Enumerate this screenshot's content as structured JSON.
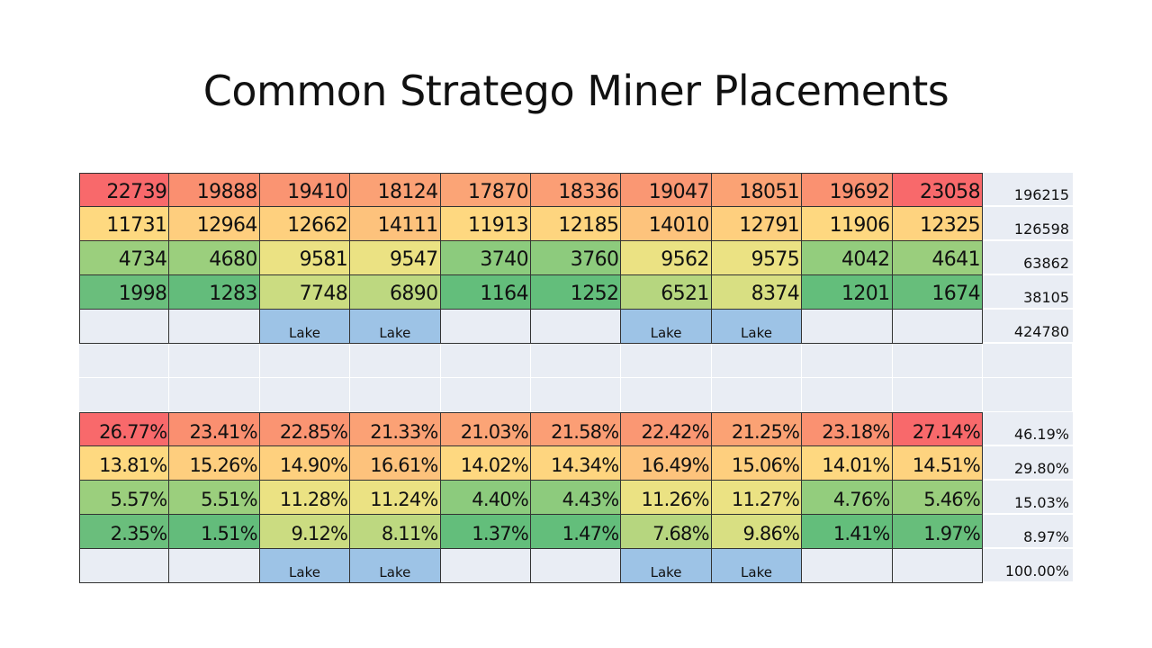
{
  "title": "Common  Stratego Miner Placements",
  "chart_data": {
    "type": "heatmap",
    "title": "Common  Stratego Miner Placements",
    "columns": 10,
    "counts": {
      "rows": [
        [
          22739,
          19888,
          19410,
          18124,
          17870,
          18336,
          19047,
          18051,
          19692,
          23058
        ],
        [
          11731,
          12964,
          12662,
          14111,
          11913,
          12185,
          14010,
          12791,
          11906,
          12325
        ],
        [
          4734,
          4680,
          9581,
          9547,
          3740,
          3760,
          9562,
          9575,
          4042,
          4641
        ],
        [
          1998,
          1283,
          7748,
          6890,
          1164,
          1252,
          6521,
          8374,
          1201,
          1674
        ]
      ],
      "row_totals": [
        196215,
        126598,
        63862,
        38105
      ],
      "grand_total": 424780
    },
    "percentages": {
      "rows": [
        [
          "26.77%",
          "23.41%",
          "22.85%",
          "21.33%",
          "21.03%",
          "21.58%",
          "22.42%",
          "21.25%",
          "23.18%",
          "27.14%"
        ],
        [
          "13.81%",
          "15.26%",
          "14.90%",
          "16.61%",
          "14.02%",
          "14.34%",
          "16.49%",
          "15.06%",
          "14.01%",
          "14.51%"
        ],
        [
          "5.57%",
          "5.51%",
          "11.28%",
          "11.24%",
          "4.40%",
          "4.43%",
          "11.26%",
          "11.27%",
          "4.76%",
          "5.46%"
        ],
        [
          "2.35%",
          "1.51%",
          "9.12%",
          "8.11%",
          "1.37%",
          "1.47%",
          "7.68%",
          "9.86%",
          "1.41%",
          "1.97%"
        ]
      ],
      "row_totals": [
        "46.19%",
        "29.80%",
        "15.03%",
        "8.97%"
      ],
      "grand_total": "100.00%"
    },
    "lake_columns": [
      2,
      3,
      6,
      7
    ],
    "lake_label": "Lake"
  },
  "colors": {
    "counts": [
      [
        "#f8696b",
        "#fa8f70",
        "#fa9472",
        "#fba175",
        "#fba476",
        "#fb9e75",
        "#fa9773",
        "#fba274",
        "#fa9171",
        "#f8696b"
      ],
      [
        "#fed980",
        "#fece7e",
        "#fed07e",
        "#fdc27c",
        "#fed880",
        "#fed57f",
        "#fdc37c",
        "#fecf7e",
        "#fed880",
        "#fed37f"
      ],
      [
        "#9bcf7d",
        "#9bcf7d",
        "#ebe283",
        "#ebe283",
        "#8ccb7d",
        "#8dcb7d",
        "#ebe283",
        "#ebe283",
        "#93cd7d",
        "#9ace7d"
      ],
      [
        "#6abe7c",
        "#63bc7b",
        "#cbdc81",
        "#bdd880",
        "#63be7b",
        "#63be7b",
        "#b6d67f",
        "#d8df82",
        "#63be7b",
        "#67be7b"
      ]
    ],
    "percentages": [
      [
        "#f8696b",
        "#fa8f70",
        "#fa9472",
        "#fba175",
        "#fba476",
        "#fb9e75",
        "#fa9773",
        "#fba274",
        "#fa9171",
        "#f8696b"
      ],
      [
        "#fed980",
        "#fece7e",
        "#fed07e",
        "#fdc27c",
        "#fed880",
        "#fed57f",
        "#fdc37c",
        "#fecf7e",
        "#fed880",
        "#fed37f"
      ],
      [
        "#9bcf7d",
        "#9bcf7d",
        "#ebe283",
        "#ebe283",
        "#8ccb7d",
        "#8dcb7d",
        "#ebe283",
        "#ebe283",
        "#93cd7d",
        "#9ace7d"
      ],
      [
        "#6abe7c",
        "#63bc7b",
        "#cbdc81",
        "#bdd880",
        "#63be7b",
        "#63be7b",
        "#b6d67f",
        "#d8df82",
        "#63be7b",
        "#67be7b"
      ]
    ],
    "lake": "#9dc3e6",
    "empty": "#e9edf4"
  }
}
